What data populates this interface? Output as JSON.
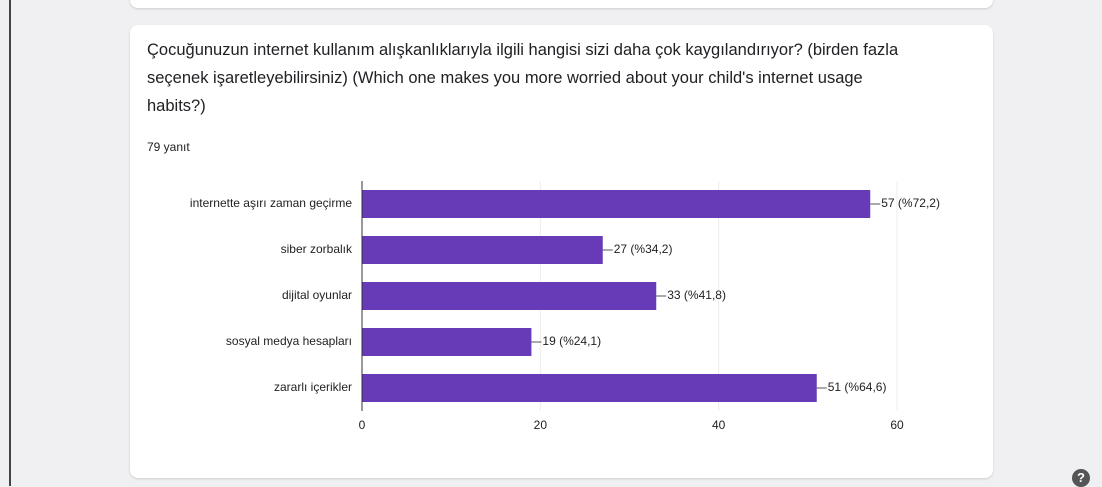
{
  "chart_data": {
    "type": "bar",
    "orientation": "horizontal",
    "title": "Çocuğunuzun internet kullanım alışkanlıklarıyla ilgili hangisi sizi daha çok kaygılandırıyor? (birden fazla seçenek işaretleyebilirsiniz) (Which one makes you more worried about your child's internet usage habits?)",
    "subtitle": "79 yanıt",
    "categories": [
      "internette aşırı zaman geçirme",
      "siber zorbalık",
      "dijital oyunlar",
      "sosyal medya hesapları",
      "zararlı içerikler"
    ],
    "values": [
      57,
      27,
      33,
      19,
      51
    ],
    "value_labels": [
      "57 (%72,2)",
      "27 (%34,2)",
      "33 (%41,8)",
      "19 (%24,1)",
      "51 (%64,6)"
    ],
    "color": "#673ab7",
    "xlim": [
      0,
      60
    ],
    "xticks": [
      0,
      20,
      40,
      60
    ],
    "grid": true
  }
}
